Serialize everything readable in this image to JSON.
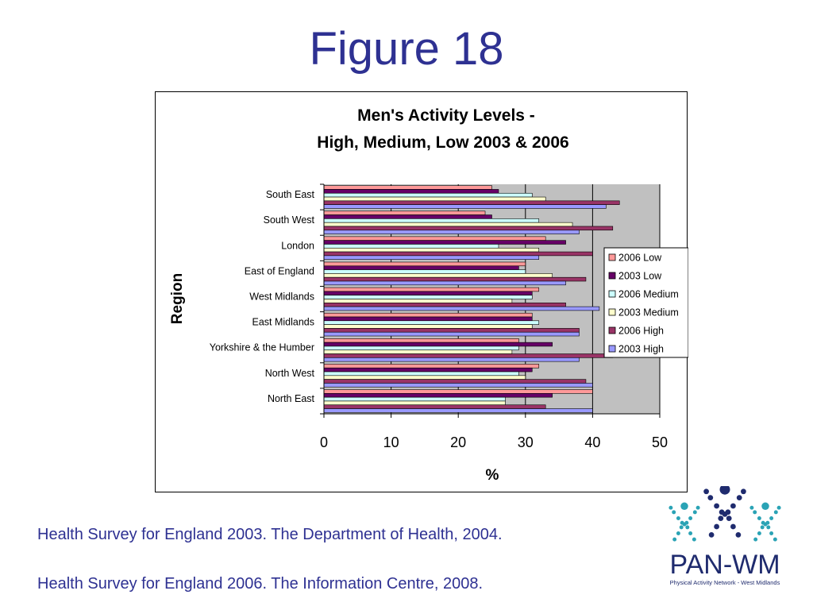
{
  "slide": {
    "title": "Figure 18",
    "citations": [
      "Health Survey for England 2003. The Department of Health, 2004.",
      "Health Survey for England 2006. The Information Centre, 2008."
    ],
    "logo": {
      "name": "PAN-WM",
      "tagline": "Physical Activity Network - West Midlands",
      "colors": {
        "teal": "#2aa3b5",
        "navy": "#1f2b6e"
      }
    }
  },
  "chart_data": {
    "type": "bar",
    "orientation": "horizontal",
    "title_line1": "Men's Activity Levels -",
    "title_line2": "High, Medium, Low 2003 & 2006",
    "xlabel": "%",
    "ylabel": "Region",
    "xlim": [
      0,
      50
    ],
    "xticks": [
      0,
      10,
      20,
      30,
      40,
      50
    ],
    "plot_background": "#c0c0c0",
    "gridlines": "vertical",
    "legend_position": "right",
    "categories": [
      "South East",
      "South West",
      "London",
      "East of England",
      "West Midlands",
      "East Midlands",
      "Yorkshire & the Humber",
      "North West",
      "North East"
    ],
    "series": [
      {
        "name": "2006 Low",
        "color": "#ff9999",
        "values": [
          25,
          24,
          33,
          30,
          32,
          31,
          29,
          32,
          40
        ]
      },
      {
        "name": "2003 Low",
        "color": "#660066",
        "values": [
          26,
          25,
          36,
          29,
          31,
          31,
          34,
          31,
          34
        ]
      },
      {
        "name": "2006 Medium",
        "color": "#ccffff",
        "values": [
          31,
          32,
          26,
          30,
          31,
          32,
          29,
          29,
          27
        ]
      },
      {
        "name": "2003 Medium",
        "color": "#ffffcc",
        "values": [
          33,
          37,
          32,
          34,
          28,
          31,
          28,
          30,
          27
        ]
      },
      {
        "name": "2006 High",
        "color": "#993366",
        "values": [
          44,
          43,
          40,
          39,
          36,
          38,
          43,
          39,
          33
        ]
      },
      {
        "name": "2003 High",
        "color": "#9999ff",
        "values": [
          42,
          38,
          32,
          36,
          41,
          38,
          38,
          40,
          40
        ]
      }
    ]
  }
}
